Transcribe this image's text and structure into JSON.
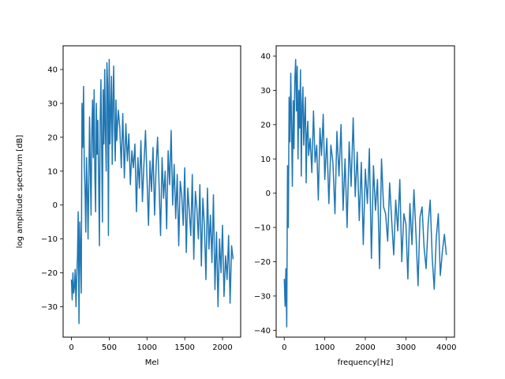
{
  "colors": {
    "line": "#1f77b4",
    "axes": "#000000",
    "background": "#ffffff"
  },
  "chart_data": [
    {
      "type": "line",
      "xlabel": "Mel",
      "ylabel": "log amplitude spectrum [dB]",
      "xlim": [
        -110,
        2240
      ],
      "ylim": [
        -39,
        47
      ],
      "xticks": [
        0,
        500,
        1000,
        1500,
        2000
      ],
      "yticks": [
        -30,
        -20,
        -10,
        0,
        10,
        20,
        30,
        40
      ],
      "grid": false,
      "series": [
        {
          "name": "",
          "x": [
            0,
            10,
            20,
            30,
            40,
            50,
            60,
            70,
            80,
            90,
            100,
            110,
            120,
            130,
            140,
            150,
            160,
            170,
            180,
            190,
            200,
            210,
            220,
            230,
            240,
            250,
            260,
            270,
            280,
            290,
            300,
            310,
            320,
            330,
            340,
            350,
            360,
            370,
            380,
            390,
            400,
            410,
            420,
            430,
            440,
            450,
            460,
            470,
            480,
            490,
            500,
            510,
            520,
            530,
            540,
            550,
            560,
            570,
            580,
            590,
            600,
            620,
            640,
            660,
            680,
            700,
            720,
            740,
            760,
            780,
            800,
            820,
            840,
            860,
            880,
            900,
            920,
            940,
            960,
            980,
            1000,
            1020,
            1040,
            1060,
            1080,
            1100,
            1120,
            1140,
            1160,
            1180,
            1200,
            1220,
            1240,
            1260,
            1280,
            1300,
            1320,
            1340,
            1360,
            1380,
            1400,
            1420,
            1440,
            1460,
            1480,
            1500,
            1520,
            1540,
            1560,
            1580,
            1600,
            1620,
            1640,
            1660,
            1680,
            1700,
            1720,
            1740,
            1760,
            1780,
            1800,
            1820,
            1840,
            1860,
            1880,
            1900,
            1920,
            1940,
            1960,
            1980,
            2000,
            2020,
            2040,
            2060,
            2080,
            2100,
            2120,
            2140
          ],
          "y": [
            -22,
            -28,
            -20,
            -26,
            -24,
            -19,
            -30,
            -22,
            -15,
            -2,
            -35,
            -5,
            -14,
            -26,
            30,
            17,
            35,
            12,
            4,
            -8,
            14,
            5,
            -10,
            8,
            26,
            10,
            -3,
            22,
            31,
            14,
            34,
            9,
            -2,
            30,
            15,
            25,
            8,
            -12,
            24,
            37,
            19,
            -5,
            34,
            18,
            40,
            22,
            10,
            42,
            35,
            -9,
            43,
            18,
            27,
            38,
            12,
            30,
            41,
            22,
            13,
            31,
            19,
            28,
            23,
            11,
            27,
            8,
            24,
            13,
            21,
            6,
            16,
            11,
            18,
            -2,
            14,
            5,
            19,
            1,
            12,
            22,
            8,
            -6,
            13,
            4,
            17,
            -3,
            11,
            20,
            6,
            -9,
            14,
            2,
            10,
            -7,
            16,
            6,
            22,
            0,
            12,
            -4,
            9,
            -12,
            7,
            3,
            -6,
            11,
            -14,
            5,
            -2,
            -9,
            9,
            -16,
            4,
            -1,
            -10,
            6,
            -18,
            2,
            -6,
            -22,
            5,
            -13,
            -3,
            -17,
            3,
            -25,
            -8,
            -30,
            -10,
            -20,
            -6,
            -27,
            -15,
            -22,
            -9,
            -29,
            -12,
            -16
          ]
        }
      ]
    },
    {
      "type": "line",
      "xlabel": "frequency[Hz]",
      "ylabel": "",
      "xlim": [
        -200,
        4200
      ],
      "ylim": [
        -42,
        43
      ],
      "xticks": [
        0,
        1000,
        2000,
        3000,
        4000
      ],
      "yticks": [
        -40,
        -30,
        -20,
        -10,
        0,
        10,
        20,
        30,
        40
      ],
      "grid": false,
      "series": [
        {
          "name": "",
          "x": [
            0,
            20,
            40,
            60,
            80,
            100,
            120,
            140,
            160,
            180,
            200,
            220,
            240,
            260,
            280,
            300,
            320,
            340,
            360,
            380,
            400,
            420,
            440,
            460,
            480,
            500,
            520,
            540,
            560,
            580,
            600,
            640,
            680,
            720,
            760,
            800,
            840,
            880,
            920,
            960,
            1000,
            1050,
            1100,
            1150,
            1200,
            1250,
            1300,
            1350,
            1400,
            1450,
            1500,
            1550,
            1600,
            1650,
            1700,
            1750,
            1800,
            1850,
            1900,
            1950,
            2000,
            2050,
            2100,
            2150,
            2200,
            2250,
            2300,
            2350,
            2400,
            2450,
            2500,
            2550,
            2600,
            2650,
            2700,
            2750,
            2800,
            2850,
            2900,
            2950,
            3000,
            3050,
            3100,
            3150,
            3200,
            3250,
            3300,
            3350,
            3400,
            3450,
            3500,
            3550,
            3600,
            3650,
            3700,
            3750,
            3800,
            3850,
            3900,
            3950,
            4000
          ],
          "y": [
            -25,
            -33,
            -22,
            -39,
            8,
            -10,
            28,
            15,
            35,
            20,
            2,
            27,
            13,
            33,
            39,
            24,
            37,
            10,
            30,
            19,
            36,
            5,
            26,
            31,
            14,
            22,
            28,
            3,
            17,
            21,
            11,
            16,
            6,
            24,
            9,
            14,
            -2,
            19,
            11,
            23,
            4,
            16,
            -3,
            14,
            9,
            -6,
            18,
            5,
            20,
            -5,
            10,
            -10,
            15,
            2,
            22,
            -1,
            12,
            -8,
            9,
            -15,
            7,
            -3,
            13,
            -19,
            8,
            -5,
            4,
            -22,
            10,
            -4,
            -6,
            -14,
            3,
            -8,
            -18,
            -2,
            -11,
            4,
            -20,
            -6,
            -9,
            -25,
            -3,
            -15,
            1,
            -12,
            -27,
            -7,
            -4,
            -16,
            -22,
            -9,
            -2,
            -19,
            -28,
            -13,
            -6,
            -24,
            -17,
            -12,
            -18
          ]
        }
      ]
    }
  ]
}
